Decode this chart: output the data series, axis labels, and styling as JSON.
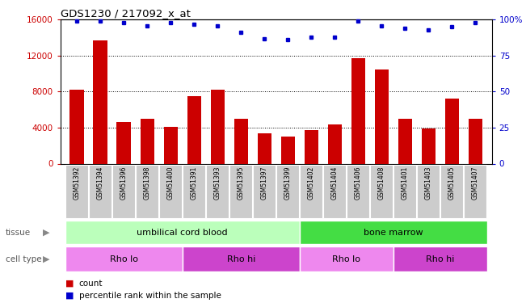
{
  "title": "GDS1230 / 217092_x_at",
  "samples": [
    "GSM51392",
    "GSM51394",
    "GSM51396",
    "GSM51398",
    "GSM51400",
    "GSM51391",
    "GSM51393",
    "GSM51395",
    "GSM51397",
    "GSM51399",
    "GSM51402",
    "GSM51404",
    "GSM51406",
    "GSM51408",
    "GSM51401",
    "GSM51403",
    "GSM51405",
    "GSM51407"
  ],
  "counts": [
    8200,
    13700,
    4600,
    5000,
    4100,
    7500,
    8200,
    5000,
    3400,
    3000,
    3700,
    4400,
    11700,
    10500,
    5000,
    3900,
    7200,
    5000
  ],
  "percentile": [
    99,
    99,
    98,
    96,
    98,
    97,
    96,
    91,
    87,
    86,
    88,
    88,
    99,
    96,
    94,
    93,
    95,
    98
  ],
  "bar_color": "#cc0000",
  "dot_color": "#0000cc",
  "ylim_left": [
    0,
    16000
  ],
  "ylim_right": [
    0,
    100
  ],
  "yticks_left": [
    0,
    4000,
    8000,
    12000,
    16000
  ],
  "yticks_right": [
    0,
    25,
    50,
    75,
    100
  ],
  "yticklabels_right": [
    "0",
    "25",
    "50",
    "75",
    "100%"
  ],
  "grid_values": [
    4000,
    8000,
    12000
  ],
  "tissue_labels": [
    {
      "text": "umbilical cord blood",
      "start": 0,
      "end": 9,
      "color": "#bbffbb"
    },
    {
      "text": "bone marrow",
      "start": 10,
      "end": 17,
      "color": "#44dd44"
    }
  ],
  "celltype_labels": [
    {
      "text": "Rho lo",
      "start": 0,
      "end": 4,
      "color": "#ee88ee"
    },
    {
      "text": "Rho hi",
      "start": 5,
      "end": 9,
      "color": "#cc44cc"
    },
    {
      "text": "Rho lo",
      "start": 10,
      "end": 13,
      "color": "#ee88ee"
    },
    {
      "text": "Rho hi",
      "start": 14,
      "end": 17,
      "color": "#cc44cc"
    }
  ],
  "legend_count_color": "#cc0000",
  "legend_pct_color": "#0000cc",
  "tick_bg_color": "#cccccc"
}
